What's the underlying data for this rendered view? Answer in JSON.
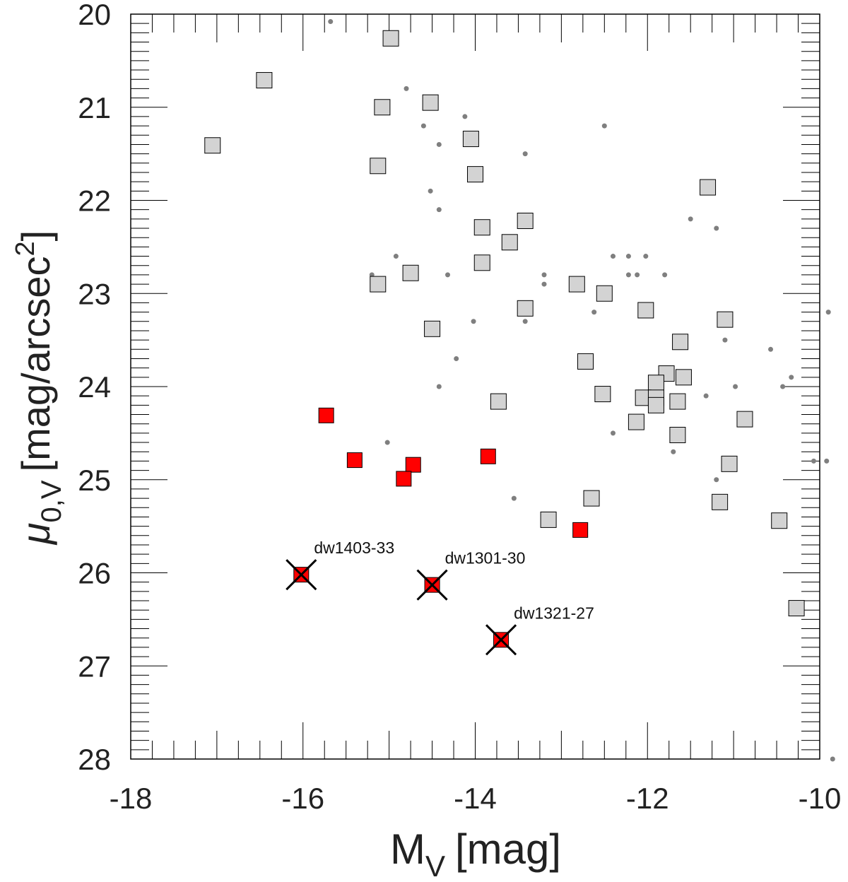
{
  "chart_data": {
    "type": "scatter",
    "title": "",
    "xlabel": {
      "main": "M",
      "sub": "V",
      "unit": "[mag]"
    },
    "ylabel": {
      "main": "μ",
      "sub": "0,V",
      "unit_pre": "[mag/arcsec",
      "sup": "2",
      "unit_post": "]"
    },
    "xlim": [
      -18,
      -10
    ],
    "ylim": [
      28,
      20
    ],
    "x_ticks": [
      -18,
      -16,
      -14,
      -12,
      -10
    ],
    "x_tick_labels": [
      "-18",
      "-16",
      "-14",
      "-12",
      "-10"
    ],
    "y_ticks": [
      20,
      21,
      22,
      23,
      24,
      25,
      26,
      27,
      28
    ],
    "y_tick_labels": [
      "20",
      "21",
      "22",
      "23",
      "24",
      "25",
      "26",
      "27",
      "28"
    ],
    "grid": false,
    "colors": {
      "gray_square": "#d3d3d3",
      "red_square": "#ff0000",
      "dot": "#7f7f7f",
      "cross": "#000000",
      "axis": "#000000"
    },
    "series": [
      {
        "name": "gray-squares",
        "marker": "square",
        "points": [
          [
            -17.05,
            21.41
          ],
          [
            -16.45,
            20.71
          ],
          [
            -14.98,
            20.26
          ],
          [
            -15.08,
            21.0
          ],
          [
            -14.52,
            20.95
          ],
          [
            -15.13,
            21.63
          ],
          [
            -14.05,
            21.34
          ],
          [
            -14.0,
            21.72
          ],
          [
            -11.3,
            21.86
          ],
          [
            -13.92,
            22.29
          ],
          [
            -13.42,
            22.22
          ],
          [
            -13.6,
            22.45
          ],
          [
            -14.75,
            22.78
          ],
          [
            -13.92,
            22.67
          ],
          [
            -15.13,
            22.9
          ],
          [
            -12.82,
            22.9
          ],
          [
            -12.5,
            23.0
          ],
          [
            -13.42,
            23.16
          ],
          [
            -12.02,
            23.18
          ],
          [
            -11.1,
            23.28
          ],
          [
            -14.5,
            23.38
          ],
          [
            -11.62,
            23.52
          ],
          [
            -12.72,
            23.73
          ],
          [
            -11.78,
            23.86
          ],
          [
            -11.58,
            23.9
          ],
          [
            -11.9,
            23.96
          ],
          [
            -12.52,
            24.08
          ],
          [
            -12.05,
            24.12
          ],
          [
            -11.9,
            24.12
          ],
          [
            -11.9,
            24.2
          ],
          [
            -11.65,
            24.16
          ],
          [
            -13.73,
            24.16
          ],
          [
            -12.13,
            24.38
          ],
          [
            -10.87,
            24.35
          ],
          [
            -11.65,
            24.52
          ],
          [
            -11.05,
            24.83
          ],
          [
            -12.65,
            25.2
          ],
          [
            -11.16,
            25.24
          ],
          [
            -13.15,
            25.43
          ],
          [
            -10.47,
            25.44
          ],
          [
            -10.27,
            26.38
          ]
        ]
      },
      {
        "name": "red-squares",
        "marker": "square",
        "points": [
          [
            -15.73,
            24.31
          ],
          [
            -15.4,
            24.79
          ],
          [
            -14.72,
            24.84
          ],
          [
            -14.83,
            24.99
          ],
          [
            -13.85,
            24.75
          ],
          [
            -12.78,
            25.54
          ],
          [
            -16.02,
            26.02
          ],
          [
            -14.5,
            26.13
          ],
          [
            -13.7,
            26.72
          ]
        ]
      },
      {
        "name": "gray-dots",
        "marker": "dot",
        "points": [
          [
            -15.68,
            20.08
          ],
          [
            -14.8,
            20.8
          ],
          [
            -14.6,
            21.2
          ],
          [
            -14.12,
            21.1
          ],
          [
            -14.42,
            21.4
          ],
          [
            -12.5,
            21.2
          ],
          [
            -13.42,
            21.5
          ],
          [
            -14.52,
            21.9
          ],
          [
            -14.42,
            22.1
          ],
          [
            -11.5,
            22.2
          ],
          [
            -11.2,
            22.3
          ],
          [
            -14.92,
            22.6
          ],
          [
            -12.4,
            22.6
          ],
          [
            -12.22,
            22.6
          ],
          [
            -12.02,
            22.6
          ],
          [
            -15.2,
            22.8
          ],
          [
            -14.32,
            22.8
          ],
          [
            -13.2,
            22.8
          ],
          [
            -12.22,
            22.8
          ],
          [
            -12.12,
            22.8
          ],
          [
            -11.8,
            22.8
          ],
          [
            -13.2,
            22.9
          ],
          [
            -12.62,
            23.2
          ],
          [
            -13.42,
            23.3
          ],
          [
            -14.02,
            23.3
          ],
          [
            -9.9,
            23.2
          ],
          [
            -11.1,
            23.5
          ],
          [
            -10.57,
            23.6
          ],
          [
            -14.22,
            23.7
          ],
          [
            -14.42,
            24.0
          ],
          [
            -10.98,
            24.0
          ],
          [
            -10.43,
            24.0
          ],
          [
            -10.33,
            23.9
          ],
          [
            -11.32,
            24.1
          ],
          [
            -12.4,
            24.5
          ],
          [
            -15.02,
            24.6
          ],
          [
            -11.7,
            24.7
          ],
          [
            -10.07,
            24.8
          ],
          [
            -9.92,
            24.8
          ],
          [
            -11.2,
            25.0
          ],
          [
            -13.55,
            25.2
          ],
          [
            -9.85,
            28.0
          ]
        ]
      }
    ],
    "annotations": [
      {
        "label": "dw1403-33",
        "x": -16.02,
        "y": 26.02
      },
      {
        "label": "dw1301-30",
        "x": -14.5,
        "y": 26.13
      },
      {
        "label": "dw1321-27",
        "x": -13.7,
        "y": 26.72
      }
    ]
  }
}
